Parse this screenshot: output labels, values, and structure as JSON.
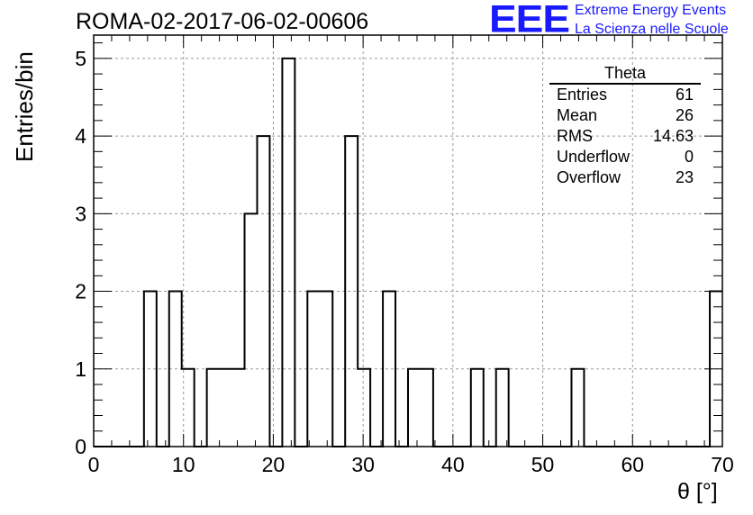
{
  "header": {
    "title": "ROMA-02-2017-06-02-00606",
    "logo_text": "EEE",
    "logo_line1": "Extreme Energy Events",
    "logo_line2": "La Scienza nelle Scuole",
    "logo_color": "#1a1aff"
  },
  "stats_box": {
    "title": "Theta",
    "rows": [
      {
        "label": "Entries",
        "value": "61"
      },
      {
        "label": "Mean",
        "value": "26"
      },
      {
        "label": "RMS",
        "value": "14.63"
      },
      {
        "label": "Underflow",
        "value": "0"
      },
      {
        "label": "Overflow",
        "value": "23"
      }
    ]
  },
  "chart_data": {
    "type": "bar",
    "histogram": true,
    "bin_width": 1.4,
    "bin_edges_start": 0,
    "counts": [
      0,
      0,
      0,
      0,
      2,
      0,
      2,
      1,
      0,
      1,
      1,
      1,
      3,
      4,
      0,
      5,
      0,
      2,
      2,
      0,
      4,
      1,
      0,
      2,
      0,
      1,
      1,
      0,
      0,
      0,
      1,
      0,
      1,
      0,
      0,
      0,
      0,
      0,
      1,
      0,
      0,
      0,
      0,
      0,
      0,
      0,
      0,
      0,
      0,
      2
    ],
    "xlabel": "θ [°]",
    "ylabel": "Entries/bin",
    "xlim": [
      0,
      70
    ],
    "ylim": [
      0,
      5.3
    ],
    "x_ticks": [
      0,
      10,
      20,
      30,
      40,
      50,
      60,
      70
    ],
    "y_ticks": [
      0,
      1,
      2,
      3,
      4,
      5
    ],
    "grid": true,
    "line_color": "#000000"
  }
}
